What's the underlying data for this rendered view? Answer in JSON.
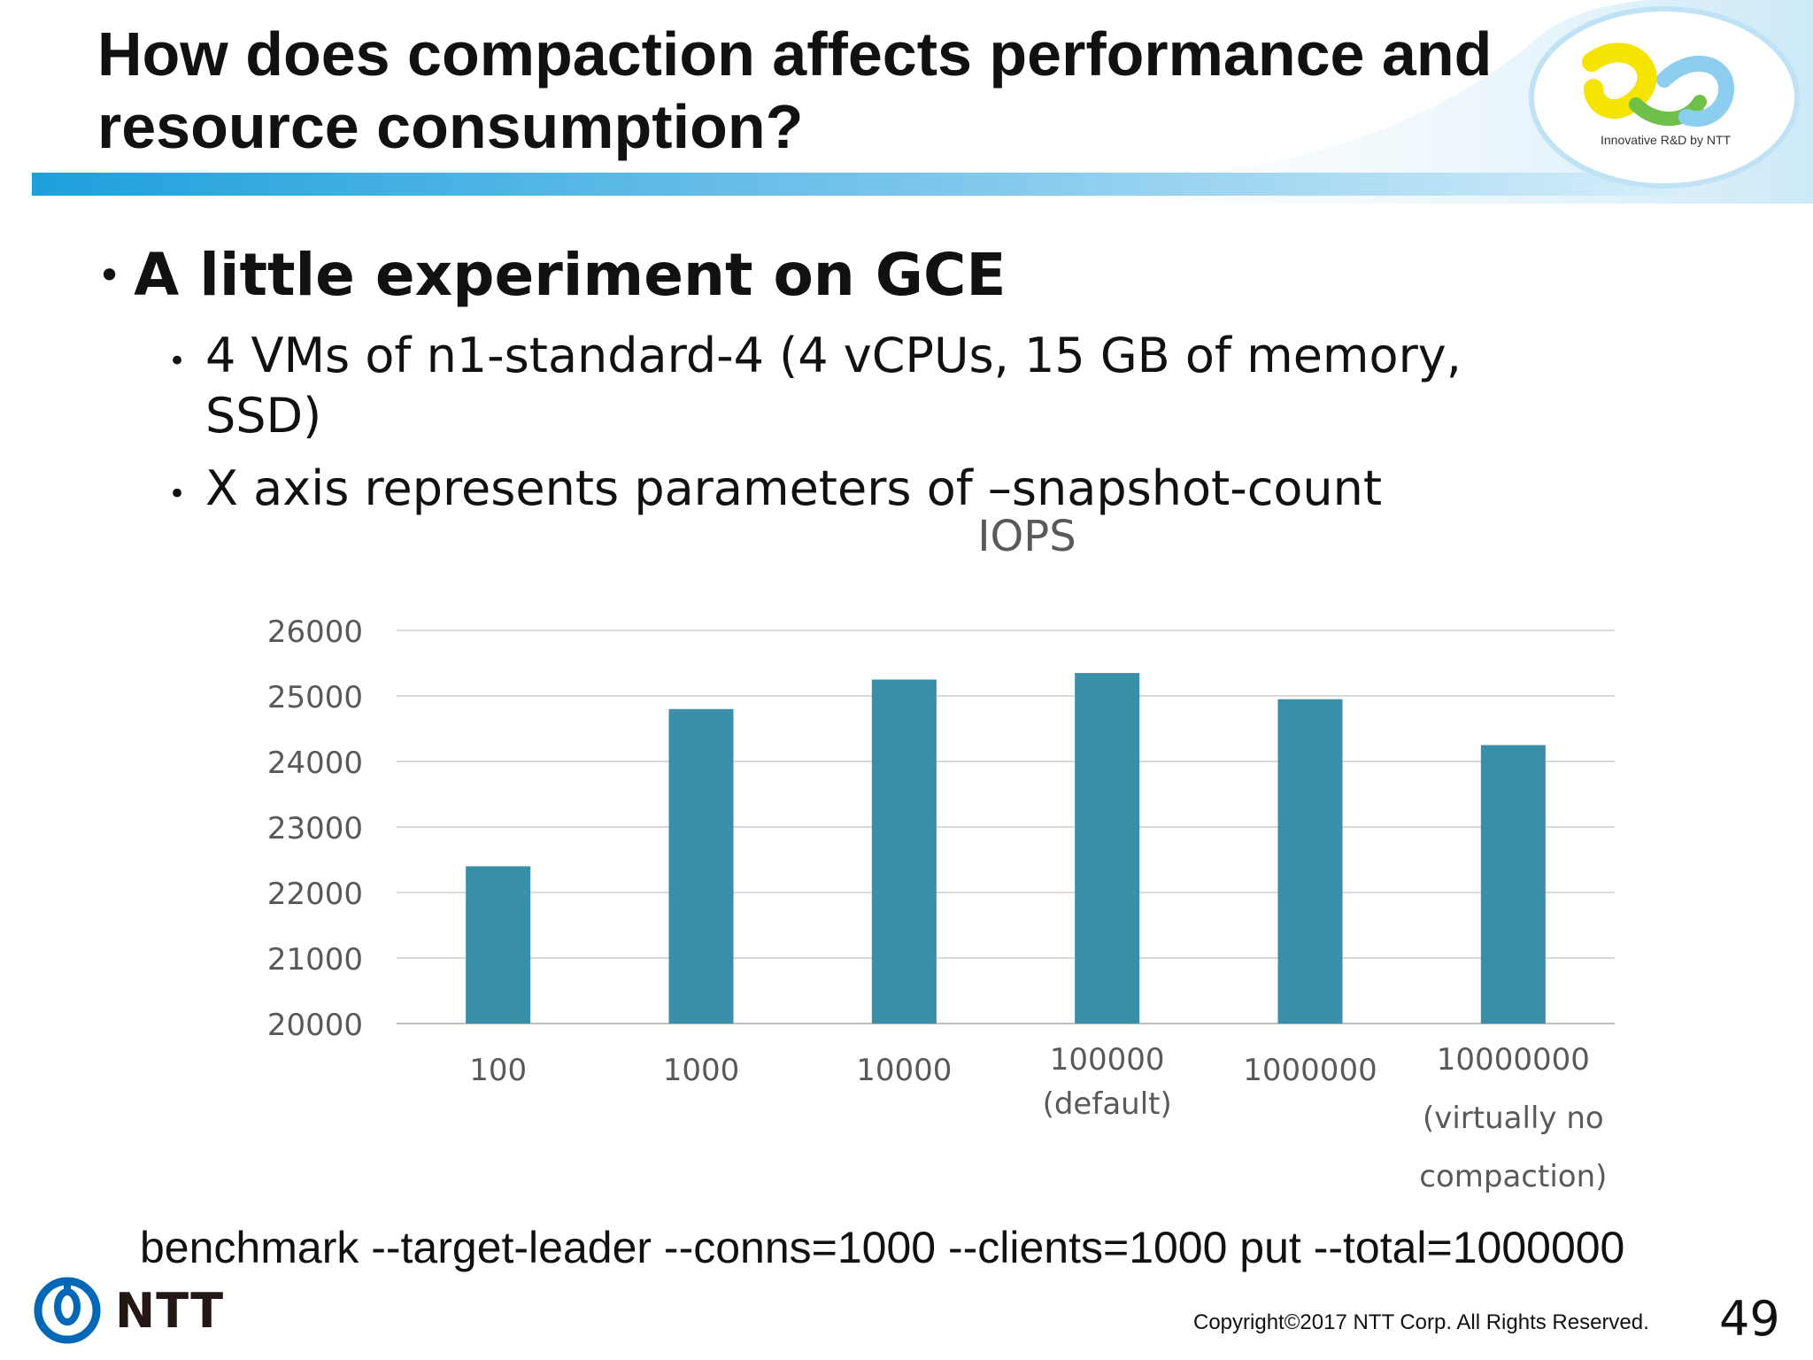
{
  "slide": {
    "title_line1": "How does compaction affects performance and",
    "title_line2": "resource consumption?",
    "bullet1": "A little experiment on GCE",
    "sub1_line1": "4 VMs of n1-standard-4 (4 vCPUs, 15 GB of memory,",
    "sub1_line2": "SSD)",
    "sub2": "X axis represents parameters of –snapshot-count",
    "command": "benchmark --target-leader --conns=1000 --clients=1000 put --total=1000000",
    "logo_tagline": "Innovative R&D by NTT",
    "company_logo": "NTT",
    "copyright": "Copyright©2017  NTT Corp. All Rights Reserved.",
    "page_number": "49"
  },
  "colors": {
    "bar": "#3a8fa8",
    "grid": "#d9d9d9",
    "axis_text": "#595959",
    "header_blue": "#1ea0dc",
    "ntt_blue": "#0068b7"
  },
  "chart_data": {
    "type": "bar",
    "title": "IOPS",
    "categories": [
      [
        "100"
      ],
      [
        "1000"
      ],
      [
        "10000"
      ],
      [
        "100000",
        "(default)"
      ],
      [
        "1000000"
      ],
      [
        "10000000",
        "(virtually no",
        "compaction)"
      ]
    ],
    "values": [
      22400,
      24800,
      25250,
      25350,
      24950,
      24250
    ],
    "ylim": [
      20000,
      26000
    ],
    "yticks": [
      20000,
      21000,
      22000,
      23000,
      24000,
      25000,
      26000
    ],
    "grid": true,
    "legend": "none"
  }
}
